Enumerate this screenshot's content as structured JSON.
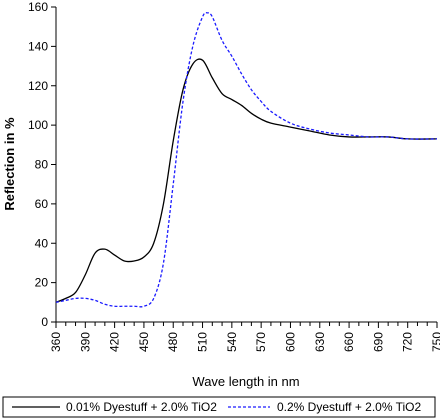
{
  "chart_data": {
    "type": "line",
    "xlabel": "Wave length in nm",
    "ylabel": "Reflection in %",
    "xlim": [
      360,
      750
    ],
    "ylim": [
      0,
      160
    ],
    "x_ticks": [
      360,
      390,
      420,
      450,
      480,
      510,
      540,
      570,
      600,
      630,
      660,
      690,
      720,
      750
    ],
    "y_ticks": [
      0,
      20,
      40,
      60,
      80,
      100,
      120,
      140,
      160
    ],
    "legend_position": "bottom",
    "grid": false,
    "series": [
      {
        "name": "0.01% Dyestuff + 2.0% TiO2",
        "style": "solid",
        "color": "#000000",
        "x": [
          360,
          370,
          380,
          390,
          400,
          410,
          420,
          430,
          440,
          450,
          460,
          470,
          480,
          490,
          500,
          510,
          520,
          530,
          540,
          550,
          560,
          570,
          580,
          600,
          620,
          640,
          660,
          680,
          700,
          720,
          750
        ],
        "y": [
          10,
          12,
          15,
          24,
          35,
          37,
          34,
          31,
          31,
          33,
          40,
          60,
          92,
          118,
          131,
          133,
          124,
          116,
          113,
          110,
          106,
          103,
          101,
          99,
          97,
          95,
          94,
          94,
          94,
          93,
          93
        ]
      },
      {
        "name": "0.2% Dyestuff + 2.0% TiO2",
        "style": "dashed",
        "color": "#1a1aff",
        "x": [
          360,
          370,
          380,
          390,
          400,
          410,
          420,
          430,
          440,
          450,
          460,
          470,
          480,
          490,
          500,
          510,
          515,
          520,
          530,
          540,
          550,
          560,
          570,
          580,
          600,
          620,
          640,
          660,
          680,
          700,
          720,
          750
        ],
        "y": [
          10,
          11,
          12,
          12,
          11,
          9,
          8,
          8,
          8,
          8,
          12,
          30,
          70,
          112,
          140,
          155,
          157,
          155,
          143,
          135,
          126,
          118,
          112,
          107,
          101,
          98,
          96,
          95,
          94,
          94,
          93,
          93
        ]
      }
    ]
  }
}
